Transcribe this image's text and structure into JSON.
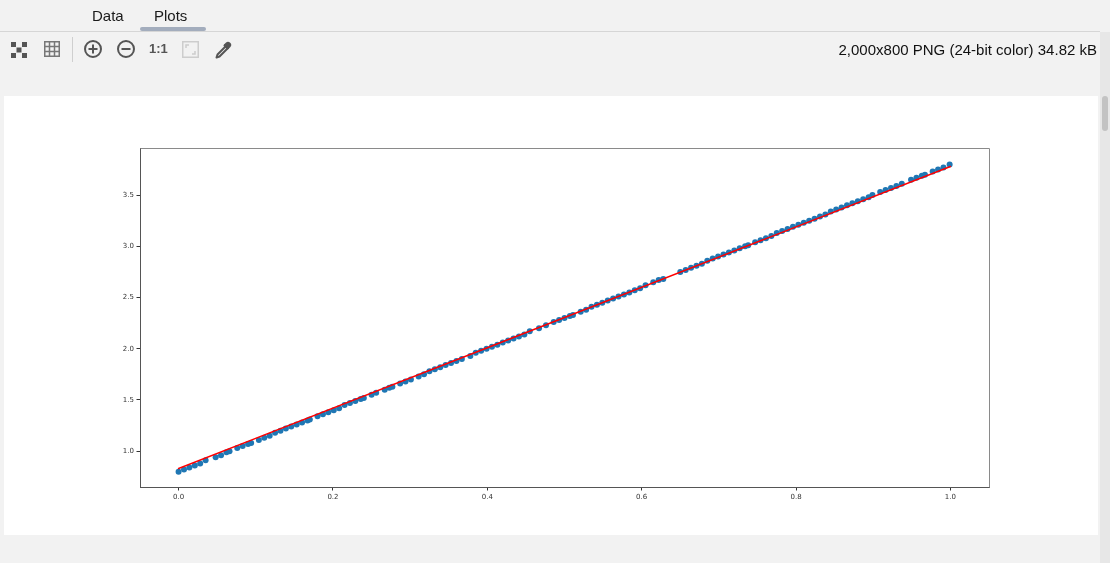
{
  "chart_data": {
    "type": "scatter",
    "annotations": [
      "Data",
      "Plots",
      "1:1",
      "2,000x800 PNG (24-bit color) 34.82 kB"
    ],
    "xlim": [
      -0.05,
      1.05
    ],
    "ylim": [
      0.65,
      3.96
    ],
    "xticks": [
      {
        "value": 0,
        "label": "0.0"
      },
      0.2,
      0.4,
      0.6,
      0.8,
      {
        "value": 1,
        "label": "1.0"
      }
    ],
    "yticks": [
      {
        "value": 1,
        "label": "1.0"
      },
      1.5,
      {
        "value": 2,
        "label": "2.0"
      },
      2.5,
      {
        "value": 3,
        "label": "3.0"
      },
      3.5
    ],
    "series": [
      {
        "type": "line",
        "color": "#ff0000",
        "marker": "none",
        "line_style": "solid",
        "x": [
          0,
          1
        ],
        "values": [
          0.83,
          3.78
        ]
      },
      {
        "color": "#1f77b4",
        "marker": "circle",
        "x": [
          0,
          0.007,
          0.014,
          0.021,
          0.028,
          0.035,
          0.048,
          0.055,
          0.062,
          0.066,
          0.076,
          0.083,
          0.09,
          0.094,
          0.104,
          0.111,
          0.118,
          0.125,
          0.132,
          0.139,
          0.146,
          0.153,
          0.16,
          0.167,
          0.17,
          0.18,
          0.187,
          0.194,
          0.201,
          0.208,
          0.215,
          0.222,
          0.229,
          0.236,
          0.24,
          0.25,
          0.256,
          0.267,
          0.273,
          0.277,
          0.287,
          0.294,
          0.301,
          0.311,
          0.318,
          0.325,
          0.332,
          0.339,
          0.346,
          0.353,
          0.36,
          0.367,
          0.378,
          0.385,
          0.392,
          0.399,
          0.406,
          0.413,
          0.42,
          0.427,
          0.434,
          0.441,
          0.448,
          0.455,
          0.467,
          0.476,
          0.486,
          0.493,
          0.5,
          0.507,
          0.511,
          0.521,
          0.528,
          0.535,
          0.542,
          0.549,
          0.556,
          0.563,
          0.57,
          0.577,
          0.584,
          0.591,
          0.598,
          0.605,
          0.615,
          0.622,
          0.628,
          0.65,
          0.657,
          0.664,
          0.671,
          0.678,
          0.685,
          0.692,
          0.699,
          0.706,
          0.713,
          0.72,
          0.727,
          0.734,
          0.738,
          0.747,
          0.754,
          0.761,
          0.768,
          0.775,
          0.782,
          0.789,
          0.796,
          0.803,
          0.81,
          0.817,
          0.824,
          0.831,
          0.838,
          0.845,
          0.852,
          0.859,
          0.866,
          0.873,
          0.88,
          0.887,
          0.894,
          0.899,
          0.909,
          0.916,
          0.923,
          0.93,
          0.937,
          0.949,
          0.956,
          0.963,
          0.967,
          0.977,
          0.984,
          0.991,
          0.999
        ],
        "values": [
          0.8,
          0.82,
          0.84,
          0.86,
          0.88,
          0.91,
          0.94,
          0.96,
          0.99,
          1.0,
          1.03,
          1.05,
          1.07,
          1.08,
          1.11,
          1.13,
          1.15,
          1.18,
          1.2,
          1.22,
          1.24,
          1.26,
          1.28,
          1.3,
          1.31,
          1.34,
          1.36,
          1.38,
          1.4,
          1.42,
          1.45,
          1.47,
          1.49,
          1.51,
          1.52,
          1.55,
          1.57,
          1.6,
          1.62,
          1.63,
          1.66,
          1.68,
          1.7,
          1.73,
          1.75,
          1.78,
          1.8,
          1.82,
          1.84,
          1.86,
          1.88,
          1.9,
          1.93,
          1.96,
          1.98,
          2.0,
          2.02,
          2.04,
          2.06,
          2.08,
          2.1,
          2.12,
          2.14,
          2.17,
          2.2,
          2.23,
          2.26,
          2.28,
          2.3,
          2.32,
          2.33,
          2.36,
          2.38,
          2.41,
          2.43,
          2.45,
          2.47,
          2.49,
          2.51,
          2.53,
          2.55,
          2.57,
          2.59,
          2.62,
          2.65,
          2.67,
          2.68,
          2.75,
          2.77,
          2.79,
          2.81,
          2.83,
          2.86,
          2.88,
          2.9,
          2.92,
          2.94,
          2.96,
          2.98,
          3.0,
          3.01,
          3.04,
          3.06,
          3.08,
          3.1,
          3.13,
          3.15,
          3.17,
          3.19,
          3.21,
          3.23,
          3.25,
          3.27,
          3.29,
          3.31,
          3.34,
          3.36,
          3.38,
          3.4,
          3.42,
          3.44,
          3.46,
          3.48,
          3.5,
          3.53,
          3.55,
          3.57,
          3.59,
          3.61,
          3.65,
          3.67,
          3.69,
          3.7,
          3.73,
          3.75,
          3.77,
          3.8
        ]
      }
    ]
  }
}
